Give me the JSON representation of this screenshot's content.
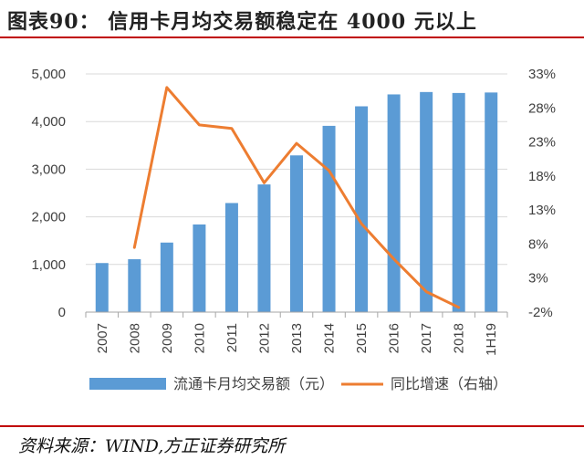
{
  "figure": {
    "title": "图表90： 信用卡月均交易额稳定在 4000 元以上",
    "source": "资料来源：WIND,方正证券研究所"
  },
  "colors": {
    "bar": "#5b9bd5",
    "line": "#ed7d31",
    "accent": "#c00000",
    "grid": "#d9d9d9"
  },
  "chart_data": {
    "type": "bar",
    "categories": [
      "2007",
      "2008",
      "2009",
      "2010",
      "2011",
      "2012",
      "2013",
      "2014",
      "2015",
      "2016",
      "2017",
      "2018",
      "1H19"
    ],
    "series": [
      {
        "name": "流通卡月均交易额（元）",
        "type": "bar",
        "axis": "left",
        "values": [
          1030,
          1110,
          1460,
          1840,
          2290,
          2680,
          3290,
          3910,
          4320,
          4570,
          4620,
          4600,
          4610
        ]
      },
      {
        "name": "同比增速（右轴）",
        "type": "line",
        "axis": "right",
        "values": [
          null,
          7.5,
          31.0,
          25.5,
          25.0,
          17.0,
          22.8,
          18.8,
          11.0,
          5.8,
          1.0,
          -1.3,
          null
        ]
      }
    ],
    "y_left": {
      "lim": [
        0,
        5000
      ],
      "ticks": [
        "0",
        "1,000",
        "2,000",
        "3,000",
        "4,000",
        "5,000"
      ],
      "tick_values": [
        0,
        1000,
        2000,
        3000,
        4000,
        5000
      ]
    },
    "y_right": {
      "lim": [
        -2,
        33
      ],
      "ticks": [
        "-2%",
        "3%",
        "8%",
        "13%",
        "18%",
        "23%",
        "28%",
        "33%"
      ],
      "tick_values": [
        -2,
        3,
        8,
        13,
        18,
        23,
        28,
        33
      ]
    },
    "grid": true,
    "legend_position": "bottom"
  }
}
